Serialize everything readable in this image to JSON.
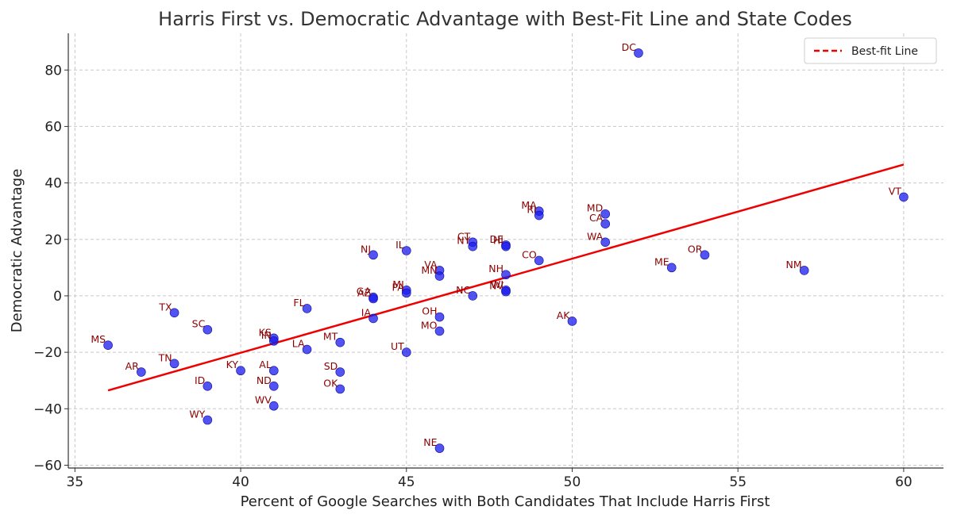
{
  "chart_data": {
    "type": "scatter",
    "title": "Harris First vs. Democratic Advantage with Best-Fit Line and State Codes",
    "xlabel": "Percent of Google Searches with Both Candidates That Include Harris First",
    "ylabel": "Democratic Advantage",
    "xlim": [
      34.8,
      61.2
    ],
    "ylim": [
      -61,
      93
    ],
    "xticks": [
      35,
      40,
      45,
      50,
      55,
      60
    ],
    "yticks": [
      -60,
      -40,
      -20,
      0,
      20,
      40,
      60,
      80
    ],
    "grid": true,
    "legend": {
      "location": "top-right",
      "entries": [
        "Best-fit Line"
      ]
    },
    "colors": {
      "points": "#1a1aee",
      "line": "#ee0000",
      "labels": "#8b0000"
    },
    "best_fit_line": {
      "name": "Best-fit Line",
      "x": [
        36,
        60
      ],
      "y": [
        -33.5,
        46.5
      ]
    },
    "points": [
      {
        "state": "DC",
        "x": 52,
        "y": 86
      },
      {
        "state": "VT",
        "x": 60,
        "y": 35
      },
      {
        "state": "MA",
        "x": 49,
        "y": 30
      },
      {
        "state": "RI",
        "x": 49,
        "y": 28.5
      },
      {
        "state": "MD",
        "x": 51,
        "y": 29
      },
      {
        "state": "CA",
        "x": 51,
        "y": 25.5
      },
      {
        "state": "WA",
        "x": 51,
        "y": 19
      },
      {
        "state": "CT",
        "x": 47,
        "y": 19
      },
      {
        "state": "NY",
        "x": 47,
        "y": 17.5
      },
      {
        "state": "DE",
        "x": 48,
        "y": 18
      },
      {
        "state": "HI",
        "x": 48,
        "y": 17.5
      },
      {
        "state": "IL",
        "x": 45,
        "y": 16
      },
      {
        "state": "NJ",
        "x": 44,
        "y": 14.5
      },
      {
        "state": "OR",
        "x": 54,
        "y": 14.5
      },
      {
        "state": "CO",
        "x": 49,
        "y": 12.5
      },
      {
        "state": "ME",
        "x": 53,
        "y": 10
      },
      {
        "state": "NM",
        "x": 57,
        "y": 9
      },
      {
        "state": "VA",
        "x": 46,
        "y": 9
      },
      {
        "state": "MN",
        "x": 46,
        "y": 7
      },
      {
        "state": "NH",
        "x": 48,
        "y": 7.5
      },
      {
        "state": "MI",
        "x": 45,
        "y": 2
      },
      {
        "state": "PA",
        "x": 45,
        "y": 1
      },
      {
        "state": "WI",
        "x": 48,
        "y": 2
      },
      {
        "state": "NV",
        "x": 48,
        "y": 1.5
      },
      {
        "state": "NC",
        "x": 47,
        "y": 0
      },
      {
        "state": "GA",
        "x": 44,
        "y": -0.5
      },
      {
        "state": "AZ",
        "x": 44,
        "y": -1
      },
      {
        "state": "FL",
        "x": 42,
        "y": -4.5
      },
      {
        "state": "TX",
        "x": 38,
        "y": -6
      },
      {
        "state": "OH",
        "x": 46,
        "y": -7.5
      },
      {
        "state": "IA",
        "x": 44,
        "y": -8
      },
      {
        "state": "AK",
        "x": 50,
        "y": -9
      },
      {
        "state": "SC",
        "x": 39,
        "y": -12
      },
      {
        "state": "MO",
        "x": 46,
        "y": -12.5
      },
      {
        "state": "KS",
        "x": 41,
        "y": -15
      },
      {
        "state": "IN",
        "x": 41,
        "y": -16
      },
      {
        "state": "MT",
        "x": 43,
        "y": -16.5
      },
      {
        "state": "MS",
        "x": 36,
        "y": -17.5
      },
      {
        "state": "LA",
        "x": 42,
        "y": -19
      },
      {
        "state": "UT",
        "x": 45,
        "y": -20
      },
      {
        "state": "TN",
        "x": 38,
        "y": -24
      },
      {
        "state": "KY",
        "x": 40,
        "y": -26.5
      },
      {
        "state": "AL",
        "x": 41,
        "y": -26.5
      },
      {
        "state": "AR",
        "x": 37,
        "y": -27
      },
      {
        "state": "SD",
        "x": 43,
        "y": -27
      },
      {
        "state": "ID",
        "x": 39,
        "y": -32
      },
      {
        "state": "ND",
        "x": 41,
        "y": -32
      },
      {
        "state": "OK",
        "x": 43,
        "y": -33
      },
      {
        "state": "WV",
        "x": 41,
        "y": -39
      },
      {
        "state": "WY",
        "x": 39,
        "y": -44
      },
      {
        "state": "NE",
        "x": 46,
        "y": -54
      }
    ]
  }
}
